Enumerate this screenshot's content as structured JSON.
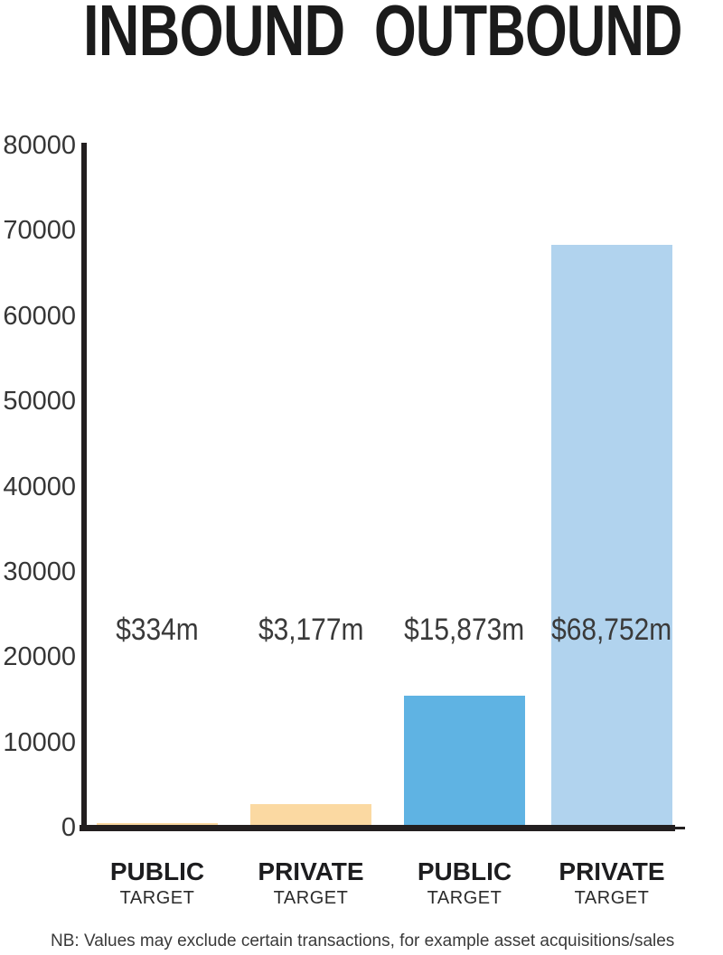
{
  "title": {
    "left": "INBOUND",
    "right": "OUTBOUND"
  },
  "footnote": "NB: Values may exclude certain transactions, for example asset acquisitions/sales",
  "colors": {
    "axis": "#231f20",
    "title_text": "#1b1b1b",
    "value_text": "#3a3a3a",
    "orange_bar": "#FBD9A2",
    "blue_bar": "#5FB3E3",
    "light_blue_bar": "#B1D3EE"
  },
  "chart_data": {
    "type": "bar",
    "title": "INBOUND OUTBOUND",
    "groups": [
      "INBOUND",
      "INBOUND",
      "OUTBOUND",
      "OUTBOUND"
    ],
    "categories": [
      "PUBLIC TARGET",
      "PRIVATE TARGET",
      "PUBLIC TARGET",
      "PRIVATE TARGET"
    ],
    "category_lines": [
      {
        "label": "PUBLIC",
        "sublabel": "TARGET"
      },
      {
        "label": "PRIVATE",
        "sublabel": "TARGET"
      },
      {
        "label": "PUBLIC",
        "sublabel": "TARGET"
      },
      {
        "label": "PRIVATE",
        "sublabel": "TARGET"
      }
    ],
    "values": [
      334,
      3177,
      15873,
      68752
    ],
    "value_labels": [
      "$334m",
      "$3,177m",
      "$15,873m",
      "$68,752m"
    ],
    "bar_colors": [
      "#FBD9A2",
      "#FBD9A2",
      "#5FB3E3",
      "#B1D3EE"
    ],
    "yticks": [
      0,
      10000,
      20000,
      30000,
      40000,
      50000,
      60000,
      70000,
      80000
    ],
    "ylim": [
      0,
      80000
    ],
    "xlabel": "",
    "ylabel": "",
    "grid": false,
    "legend": false,
    "units": "$m"
  }
}
